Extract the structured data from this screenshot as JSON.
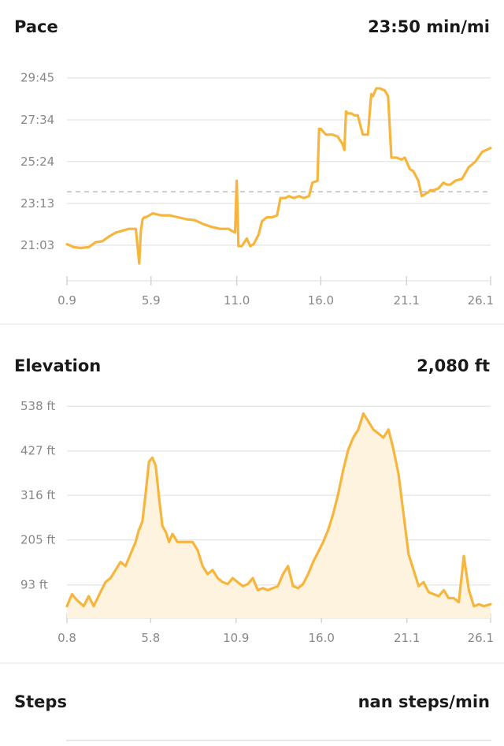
{
  "pace": {
    "title": "Pace",
    "value": "23:50 min/mi"
  },
  "elevation": {
    "title": "Elevation",
    "value": "2,080 ft"
  },
  "steps": {
    "title": "Steps",
    "value": "nan steps/min"
  },
  "colors": {
    "line": "#f6b53c",
    "fill": "#fdf3df",
    "grid": "#e8e8e8",
    "avg": "#bdbdbd",
    "tick": "#888888"
  },
  "chart_data": [
    {
      "type": "line",
      "title": "Pace",
      "y_tick_labels": [
        "29:45",
        "27:34",
        "25:24",
        "23:13",
        "21:03"
      ],
      "y_tick_values": [
        29.75,
        27.567,
        25.4,
        23.217,
        21.05
      ],
      "x_tick_labels": [
        "0.9",
        "5.9",
        "11.0",
        "16.0",
        "21.1",
        "26.1"
      ],
      "x_tick_values": [
        0.9,
        5.9,
        11.0,
        16.0,
        21.1,
        26.1
      ],
      "xlim": [
        0.9,
        26.1
      ],
      "ylim": [
        19.2,
        30.6
      ],
      "average": 23.83,
      "unit": "min/mi",
      "x": [
        0.9,
        1.3,
        1.7,
        2.2,
        2.6,
        3.0,
        3.4,
        3.8,
        4.2,
        4.6,
        5.0,
        5.2,
        5.3,
        5.4,
        5.5,
        5.6,
        6.0,
        6.5,
        7.0,
        7.5,
        8.0,
        8.5,
        9.0,
        9.5,
        10.0,
        10.5,
        10.9,
        11.0,
        11.1,
        11.3,
        11.6,
        11.8,
        12.0,
        12.3,
        12.5,
        12.8,
        13.1,
        13.4,
        13.6,
        13.9,
        14.1,
        14.4,
        14.7,
        15.0,
        15.3,
        15.5,
        15.8,
        15.9,
        16.0,
        16.3,
        16.7,
        17.0,
        17.3,
        17.4,
        17.5,
        17.6,
        17.8,
        18.0,
        18.2,
        18.5,
        18.8,
        19.0,
        19.1,
        19.3,
        19.5,
        19.8,
        20.0,
        20.2,
        20.5,
        20.8,
        21.0,
        21.3,
        21.5,
        21.8,
        22.0,
        22.4,
        22.5,
        22.7,
        23.0,
        23.3,
        23.5,
        23.7,
        24.0,
        24.4,
        24.8,
        25.2,
        25.6,
        26.1
      ],
      "y": [
        21.1,
        20.95,
        20.9,
        20.95,
        21.2,
        21.25,
        21.5,
        21.7,
        21.8,
        21.9,
        21.9,
        20.1,
        21.8,
        22.4,
        22.5,
        22.5,
        22.7,
        22.6,
        22.6,
        22.5,
        22.4,
        22.35,
        22.15,
        22.0,
        21.9,
        21.9,
        21.7,
        24.4,
        21.0,
        21.0,
        21.4,
        21.0,
        21.1,
        21.6,
        22.3,
        22.5,
        22.5,
        22.6,
        23.5,
        23.5,
        23.6,
        23.5,
        23.6,
        23.5,
        23.6,
        24.3,
        24.4,
        27.1,
        27.1,
        26.8,
        26.8,
        26.7,
        26.3,
        26.0,
        28.0,
        27.9,
        27.9,
        27.8,
        27.8,
        26.8,
        26.8,
        28.9,
        28.8,
        29.2,
        29.2,
        29.1,
        28.8,
        25.6,
        25.6,
        25.5,
        25.6,
        25.0,
        24.9,
        24.4,
        23.6,
        23.8,
        23.9,
        23.9,
        24.0,
        24.3,
        24.2,
        24.2,
        24.4,
        24.5,
        25.1,
        25.4,
        25.9,
        26.1
      ]
    },
    {
      "type": "area",
      "title": "Elevation",
      "y_tick_labels": [
        "538 ft",
        "427 ft",
        "316 ft",
        "205 ft",
        "93 ft"
      ],
      "y_tick_values": [
        538,
        427,
        316,
        205,
        93
      ],
      "x_tick_labels": [
        "0.8",
        "5.8",
        "10.9",
        "16.0",
        "21.1",
        "26.1"
      ],
      "x_tick_values": [
        0.8,
        5.8,
        10.9,
        16.0,
        21.1,
        26.1
      ],
      "xlim": [
        0.8,
        26.1
      ],
      "ylim": [
        10,
        560
      ],
      "unit": "ft",
      "x": [
        0.8,
        1.1,
        1.4,
        1.8,
        2.1,
        2.4,
        2.8,
        3.1,
        3.4,
        3.7,
        4.0,
        4.3,
        4.6,
        4.9,
        5.1,
        5.3,
        5.5,
        5.7,
        5.9,
        6.1,
        6.3,
        6.5,
        6.7,
        6.9,
        7.1,
        7.4,
        7.7,
        8.0,
        8.3,
        8.6,
        8.9,
        9.2,
        9.5,
        9.8,
        10.1,
        10.4,
        10.7,
        11.0,
        11.3,
        11.6,
        11.9,
        12.2,
        12.5,
        12.8,
        13.1,
        13.4,
        13.7,
        14.0,
        14.3,
        14.6,
        14.9,
        15.2,
        15.5,
        15.8,
        16.1,
        16.4,
        16.7,
        17.0,
        17.3,
        17.6,
        17.9,
        18.2,
        18.5,
        18.8,
        19.1,
        19.4,
        19.7,
        20.0,
        20.3,
        20.6,
        20.9,
        21.2,
        21.5,
        21.8,
        22.1,
        22.4,
        22.7,
        23.0,
        23.3,
        23.6,
        23.9,
        24.2,
        24.5,
        24.8,
        25.1,
        25.4,
        25.7,
        26.1
      ],
      "y": [
        40,
        70,
        55,
        40,
        65,
        40,
        75,
        100,
        110,
        130,
        150,
        140,
        170,
        200,
        230,
        250,
        320,
        400,
        410,
        390,
        310,
        240,
        225,
        200,
        220,
        200,
        200,
        200,
        200,
        180,
        140,
        120,
        130,
        110,
        100,
        95,
        110,
        100,
        90,
        95,
        110,
        80,
        85,
        80,
        85,
        90,
        120,
        140,
        90,
        85,
        95,
        120,
        150,
        175,
        200,
        230,
        270,
        320,
        380,
        430,
        460,
        480,
        520,
        500,
        480,
        470,
        460,
        480,
        430,
        370,
        270,
        170,
        130,
        90,
        100,
        75,
        70,
        65,
        80,
        60,
        60,
        50,
        165,
        80,
        40,
        45,
        40,
        45
      ]
    }
  ]
}
